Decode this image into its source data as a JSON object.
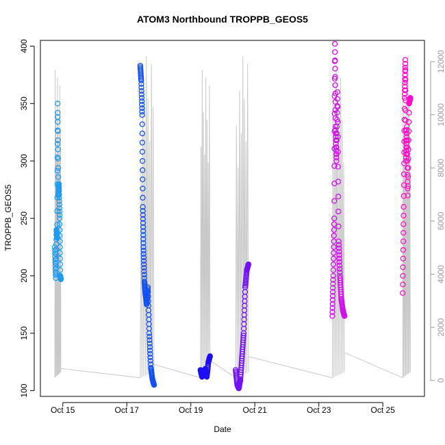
{
  "chart_data": {
    "type": "scatter",
    "title": "ATOM3 Northbound TROPPB_GEOS5",
    "xlabel": "Date",
    "ylabel": "TROPPB_GEOS5",
    "x_ticks": [
      "Oct 15",
      "Oct 17",
      "Oct 19",
      "Oct 21",
      "Oct 23",
      "Oct 25"
    ],
    "x_tick_days": [
      15,
      17,
      19,
      21,
      23,
      25
    ],
    "xlim_days": [
      14.3,
      26.3
    ],
    "ylim": [
      95,
      405
    ],
    "y_ticks": [
      100,
      150,
      200,
      250,
      300,
      350,
      400
    ],
    "y2_ticks": [
      0,
      2000,
      4000,
      6000,
      8000,
      10000,
      12000
    ],
    "y2_range": [
      -600,
      12800
    ],
    "secondary_series_color": "#c8c8c8",
    "flights": [
      {
        "color": "#1e9bf0",
        "t": [
          14.75,
          14.78,
          14.8,
          14.82,
          14.84,
          14.86,
          14.88,
          14.9,
          14.92,
          14.94
        ],
        "y": [
          225,
          198,
          240,
          233,
          350,
          270,
          280,
          250,
          200,
          197
        ]
      },
      {
        "color": "#1350f0",
        "t": [
          17.42,
          17.45,
          17.48,
          17.5,
          17.52,
          17.55,
          17.58,
          17.62,
          17.66,
          17.7,
          17.75,
          17.8,
          17.85
        ],
        "y": [
          383,
          370,
          340,
          260,
          225,
          195,
          185,
          175,
          190,
          150,
          120,
          110,
          105
        ]
      },
      {
        "color": "#1c0ff0",
        "t": [
          19.3,
          19.35,
          19.4,
          19.45,
          19.5,
          19.55,
          19.6
        ],
        "y": [
          118,
          112,
          115,
          119,
          112,
          125,
          130
        ]
      },
      {
        "color": "#7310f5",
        "t": [
          20.4,
          20.45,
          20.5,
          20.55,
          20.6,
          20.65,
          20.7,
          20.75,
          20.8
        ],
        "y": [
          118,
          105,
          102,
          110,
          130,
          150,
          190,
          205,
          210
        ]
      },
      {
        "color": "#d010ea",
        "t": [
          23.42,
          23.45,
          23.48,
          23.5,
          23.52,
          23.55,
          23.58,
          23.62,
          23.66,
          23.7,
          23.75,
          23.8
        ],
        "y": [
          165,
          200,
          250,
          402,
          330,
          300,
          360,
          230,
          200,
          180,
          170,
          165
        ]
      },
      {
        "color": "#ff10c8",
        "t": [
          25.62,
          25.65,
          25.68,
          25.7,
          25.72,
          25.75,
          25.78,
          25.82,
          25.86
        ],
        "y": [
          185,
          260,
          355,
          388,
          300,
          330,
          270,
          350,
          355
        ]
      }
    ]
  }
}
